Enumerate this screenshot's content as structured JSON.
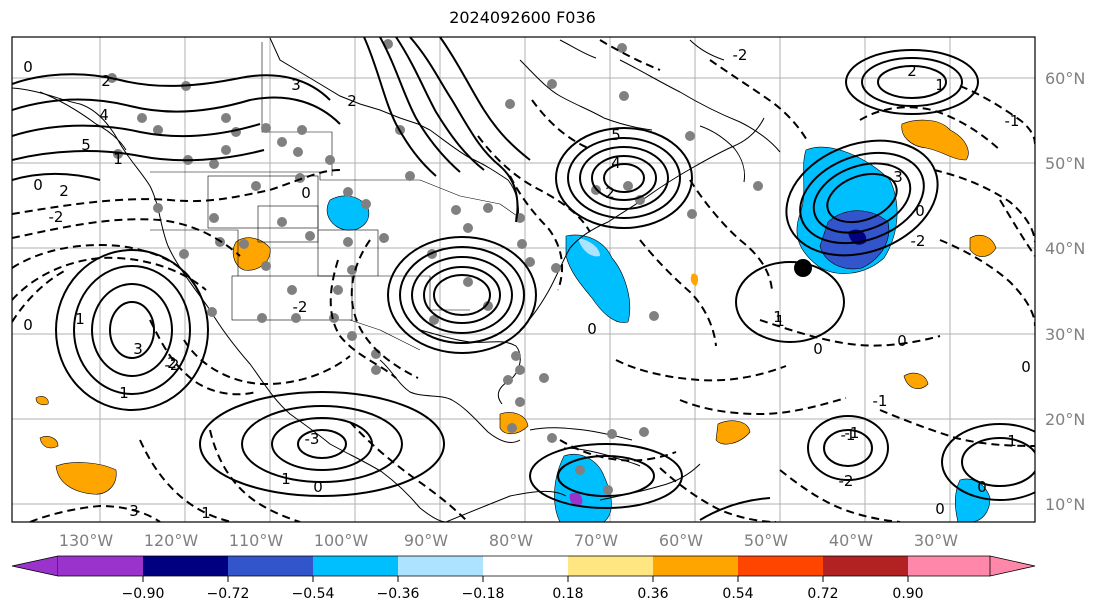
{
  "title": "2024092600 F036",
  "map": {
    "lon_labels": [
      "130°W",
      "120°W",
      "110°W",
      "100°W",
      "90°W",
      "80°W",
      "70°W",
      "60°W",
      "50°W",
      "40°W",
      "30°W"
    ],
    "lat_labels": [
      "60°N",
      "50°N",
      "40°N",
      "30°N",
      "20°N",
      "10°N"
    ],
    "contour_labels": [
      "0",
      "2",
      "4",
      "5",
      "3",
      "2",
      "0",
      "2",
      "-2",
      "1",
      "0",
      "1",
      "3",
      "1",
      "2",
      "-2",
      "0",
      "2",
      "4",
      "5",
      "2",
      "3",
      "0",
      "-2",
      "1",
      "-1",
      "0",
      "0",
      "-1",
      "-2",
      "-3",
      "1",
      "0",
      "1",
      "3",
      "-2",
      "0",
      "1",
      "-1",
      "1",
      "0",
      "-2",
      "-1",
      "0",
      "0",
      "1"
    ],
    "colors": {
      "purple": "#9933CC",
      "navy": "#000080",
      "royal_blue": "#3355CC",
      "deep_sky": "#00BFFF",
      "light_blue": "#ADE3FF",
      "white": "#FFFFFF",
      "light_yellow": "#FFE680",
      "orange": "#FFA500",
      "orange_red": "#FF4500",
      "firebrick": "#B22222",
      "pink": "#FF88AA"
    }
  },
  "colorbar": {
    "ticks": [
      "−0.90",
      "−0.72",
      "−0.54",
      "−0.36",
      "−0.18",
      "0.18",
      "0.36",
      "0.54",
      "0.72",
      "0.90"
    ]
  }
}
